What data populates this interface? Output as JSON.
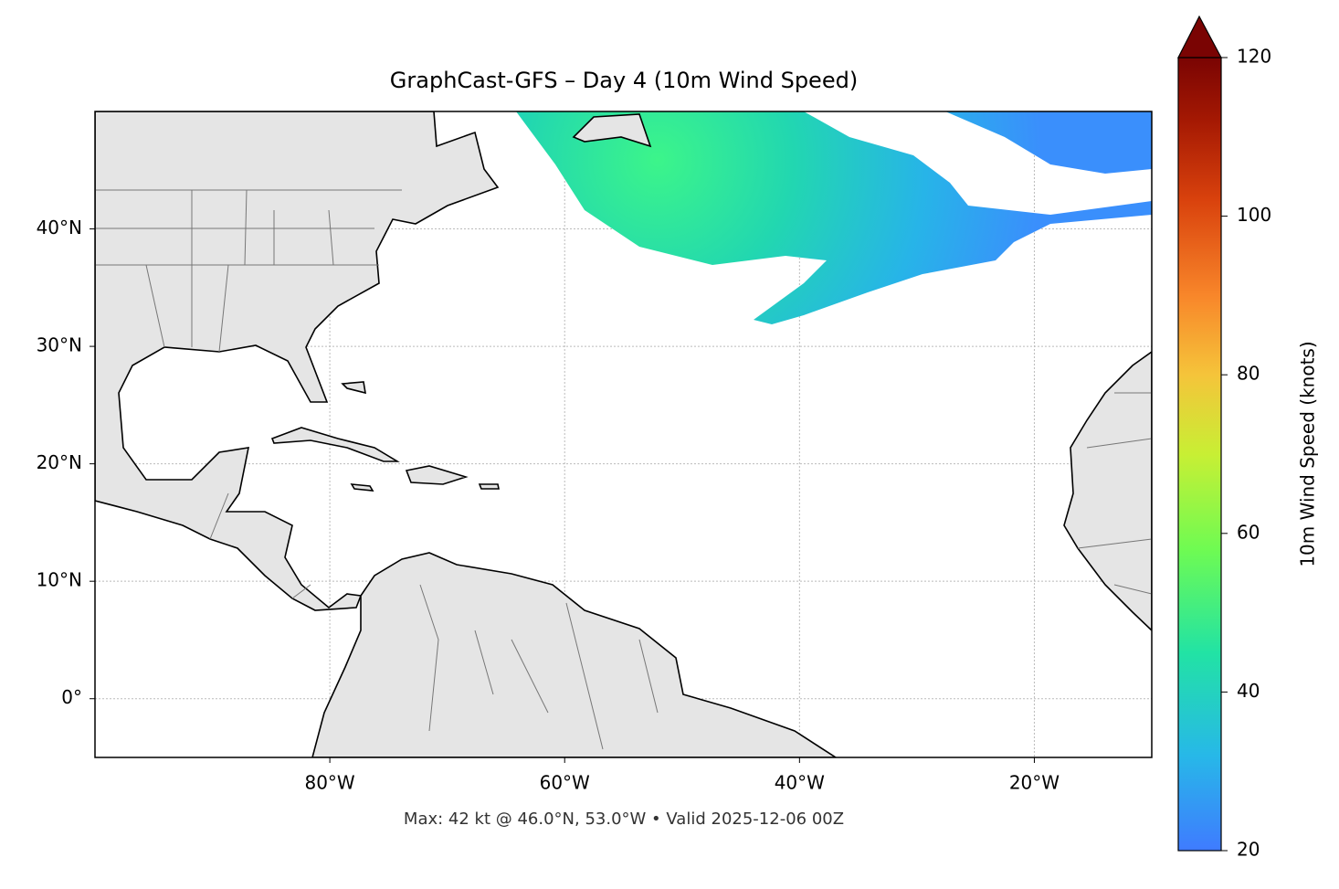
{
  "title": "GraphCast-GFS – Day 4 (10m Wind Speed)",
  "footer": "Max: 42 kt @ 46.0°N, 53.0°W • Valid 2025-12-06 00Z",
  "map": {
    "xlim": [
      -100,
      -10
    ],
    "ylim": [
      -5,
      50
    ],
    "grid": true,
    "xticks": [
      {
        "value": -80,
        "label": "80°W"
      },
      {
        "value": -60,
        "label": "60°W"
      },
      {
        "value": -40,
        "label": "40°W"
      },
      {
        "value": -20,
        "label": "20°W"
      }
    ],
    "yticks": [
      {
        "value": 0,
        "label": "0°"
      },
      {
        "value": 10,
        "label": "10°N"
      },
      {
        "value": 20,
        "label": "20°N"
      },
      {
        "value": 30,
        "label": "30°N"
      },
      {
        "value": 40,
        "label": "40°N"
      }
    ]
  },
  "colorbar": {
    "label": "10m Wind Speed (knots)",
    "clim": [
      20,
      120
    ],
    "ticks": [
      20,
      40,
      60,
      80,
      100,
      120
    ]
  }
}
